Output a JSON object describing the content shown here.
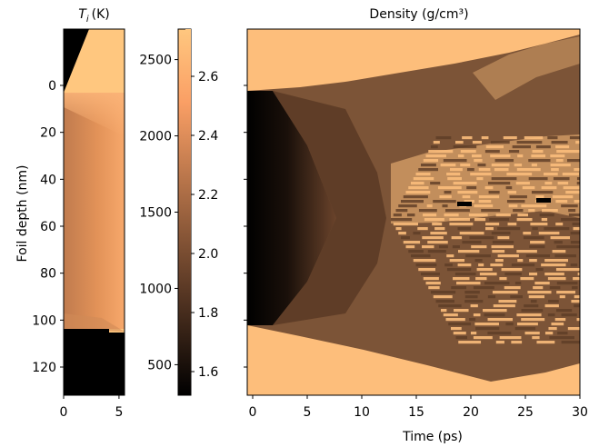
{
  "chart_data": [
    {
      "type": "heatmap",
      "title": "T_i (K)",
      "title_symbol": "T",
      "title_subscript": "i",
      "title_unit": "(K)",
      "ylabel": "Foil depth (nm)",
      "xlabel": "",
      "xlim": [
        0,
        5.5
      ],
      "ylim": [
        132,
        -24
      ],
      "x_ticks": [
        "0",
        "5"
      ],
      "y_ticks": [
        "0",
        "20",
        "40",
        "60",
        "80",
        "100",
        "120"
      ],
      "colormap": "copper",
      "foil_top_nm": 0,
      "foil_bottom_nm": 103,
      "colorbar": {
        "range": [
          300,
          2700
        ],
        "ticks": [
          "500",
          "1000",
          "1500",
          "2000",
          "2500"
        ]
      }
    },
    {
      "type": "heatmap",
      "title": "Density (g/cm³)",
      "xlabel": "Time (ps)",
      "ylabel": "",
      "xlim": [
        -0.5,
        30
      ],
      "ylim": [
        132,
        -24
      ],
      "x_ticks": [
        "0",
        "5",
        "10",
        "15",
        "20",
        "25",
        "30"
      ],
      "colormap": "copper",
      "colorbar": {
        "range": [
          1.52,
          2.76
        ],
        "ticks": [
          "1.6",
          "1.8",
          "2.0",
          "2.2",
          "2.4",
          "2.6"
        ]
      }
    }
  ]
}
